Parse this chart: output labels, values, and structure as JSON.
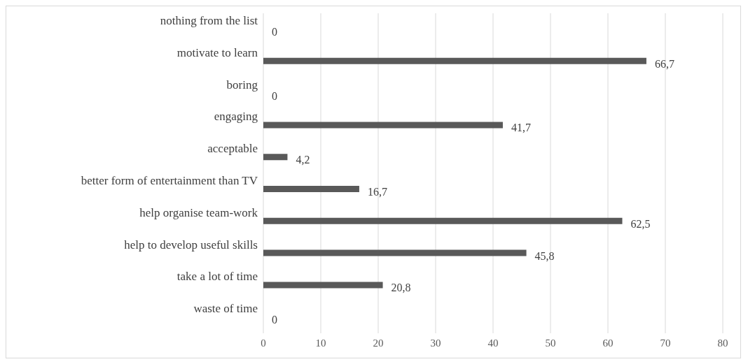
{
  "chart_data": {
    "type": "bar",
    "orientation": "horizontal",
    "categories": [
      "nothing from the list",
      "motivate to learn",
      "boring",
      "engaging",
      "acceptable",
      "better form of entertainment than TV",
      "help organise team-work",
      "help to develop useful skills",
      "take a lot of time",
      "waste of time"
    ],
    "values": [
      0,
      66.7,
      0,
      41.7,
      4.2,
      16.7,
      62.5,
      45.8,
      20.8,
      0
    ],
    "value_labels": [
      "0",
      "66,7",
      "0",
      "41,7",
      "4,2",
      "16,7",
      "62,5",
      "45,8",
      "20,8",
      "0"
    ],
    "color": "#595959",
    "xlim": [
      0,
      80
    ],
    "xticks": [
      0,
      10,
      20,
      30,
      40,
      50,
      60,
      70,
      80
    ],
    "grid": "x"
  }
}
